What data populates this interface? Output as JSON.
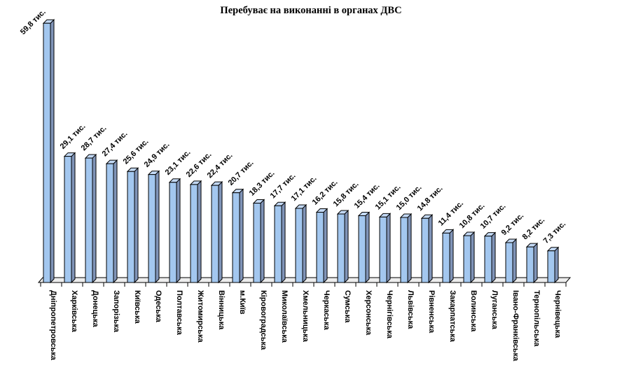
{
  "chart_data": {
    "type": "bar",
    "style": "3d-column",
    "title": "Перебуває на виконанні в органах ДВС",
    "unit_suffix": "тис.",
    "categories": [
      "Дніпропетровська",
      "Харківська",
      "Донецька",
      "Запорізька",
      "Київська",
      "Одеська",
      "Полтавська",
      "Житомирська",
      "Вінницька",
      "м.Київ",
      "Кіровоградська",
      "Миколаївська",
      "Хмельницька",
      "Черкаська",
      "Сумська",
      "Херсонська",
      "Чернігівська",
      "Львівська",
      "Рівненська",
      "Закарпатська",
      "Волинська",
      "Луганська",
      "Івано-Франківська",
      "Тернопільська",
      "Чернівецька"
    ],
    "values": [
      59.8,
      29.1,
      28.7,
      27.4,
      25.6,
      24.9,
      23.1,
      22.6,
      22.4,
      20.7,
      18.3,
      17.7,
      17.1,
      16.2,
      15.8,
      15.4,
      15.1,
      15.0,
      14.8,
      11.4,
      10.8,
      10.7,
      9.2,
      8.2,
      7.3
    ],
    "value_labels": [
      "59,8 тис.",
      "29,1 тис.",
      "28,7 тис.",
      "27,4 тис.",
      "25,6 тис.",
      "24,9 тис.",
      "23,1 тис.",
      "22,6 тис.",
      "22,4 тис.",
      "20,7 тис.",
      "18,3 тис.",
      "17,7 тис.",
      "17,1 тис.",
      "16,2 тис.",
      "15,8 тис.",
      "15,4 тис.",
      "15,1 тис.",
      "15,0 тис.",
      "14,8 тис.",
      "11,4 тис.",
      "10,8 тис.",
      "10,7 тис.",
      "9,2 тис.",
      "8,2 тис.",
      "7,3 тис."
    ],
    "xlabel": "",
    "ylabel": "",
    "ylim": [
      0,
      60
    ],
    "grid": false,
    "legend": false,
    "colors": {
      "bar_front": "#A3C7EF",
      "bar_side": "#8094B8",
      "bar_top": "#C3D9F5",
      "bar_outline": "#000000",
      "floor_fill": "#EDEDED",
      "axis_line": "#000000",
      "text": "#000000",
      "background": "#FFFFFF"
    }
  }
}
